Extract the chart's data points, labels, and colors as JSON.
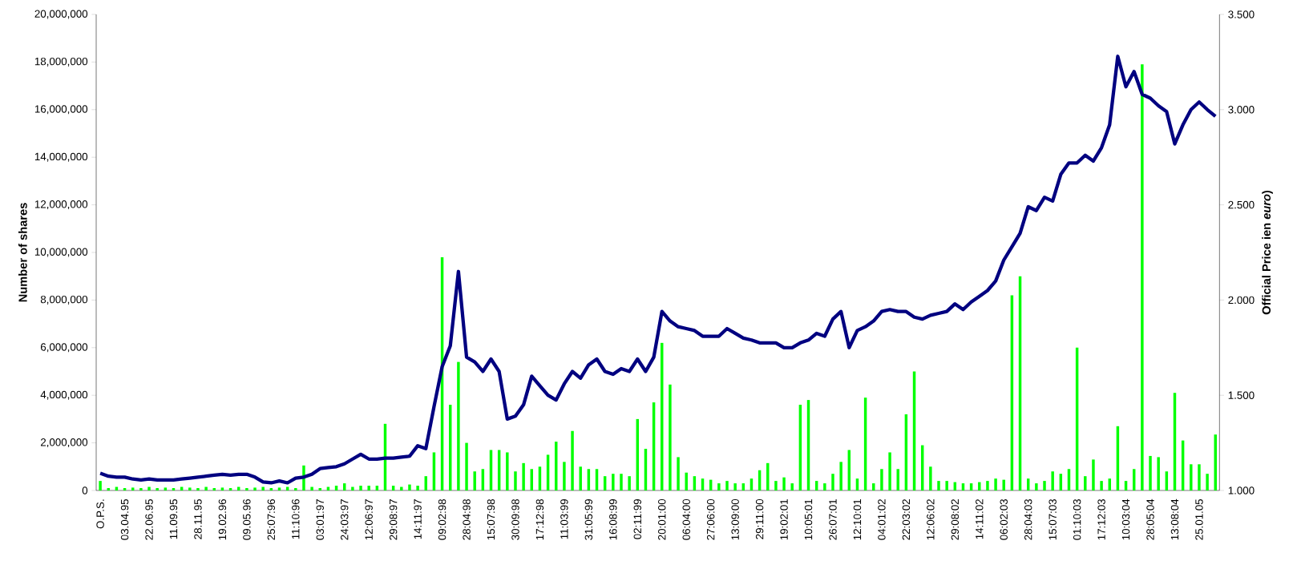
{
  "chart_data": {
    "type": "bar",
    "categories": [
      "O.P.S.",
      null,
      null,
      "03.04.95",
      null,
      null,
      "22.06.95",
      null,
      null,
      "11.09.95",
      null,
      null,
      "28.11.95",
      null,
      null,
      "19.02.96",
      null,
      null,
      "09.05.96",
      null,
      null,
      "25:07:96",
      null,
      null,
      "11:10:96",
      null,
      null,
      "03:01:97",
      null,
      null,
      "24:03:97",
      null,
      null,
      "12:06:97",
      null,
      null,
      "29:08:97",
      null,
      null,
      "14:11:97",
      null,
      null,
      "09:02:98",
      null,
      null,
      "28:04:98",
      null,
      null,
      "15:07:98",
      null,
      null,
      "30:09:98",
      null,
      null,
      "17:12:98",
      null,
      null,
      "11:03:99",
      null,
      null,
      "31:05:99",
      null,
      null,
      "16:08:99",
      null,
      null,
      "02:11:99",
      null,
      null,
      "20:01:00",
      null,
      null,
      "06:04:00",
      null,
      null,
      "27:06:00",
      null,
      null,
      "13:09:00",
      null,
      null,
      "29:11:00",
      null,
      null,
      "19:02:01",
      null,
      null,
      "10:05:01",
      null,
      null,
      "26:07:01",
      null,
      null,
      "12:10:01",
      null,
      null,
      "04:01:02",
      null,
      null,
      "22:03:02",
      null,
      null,
      "12:06:02",
      null,
      null,
      "29:08:02",
      null,
      null,
      "14:11:02",
      null,
      null,
      "06:02:03",
      null,
      null,
      "28:04:03",
      null,
      null,
      "15:07:03",
      null,
      null,
      "01:10:03",
      null,
      null,
      "17:12:03",
      null,
      null,
      "10:03:04",
      null,
      null,
      "28:05:04",
      null,
      null,
      "13:08:04",
      null,
      null,
      "25.01.05",
      null,
      null
    ],
    "ylabel": "Number of shares",
    "y2label": "Official Price ien *euro*)",
    "ylim": [
      0,
      20000000
    ],
    "yticks": [
      0,
      {
        "value": 2000000,
        "label": "2,000,000"
      },
      {
        "value": 4000000,
        "label": "4,000,000"
      },
      {
        "value": 6000000,
        "label": "6,000,000"
      },
      {
        "value": 8000000,
        "label": "8,000,000"
      },
      {
        "value": 10000000,
        "label": "10,000,000"
      },
      {
        "value": 12000000,
        "label": "12,000,000"
      },
      {
        "value": 14000000,
        "label": "14,000,000"
      },
      {
        "value": 16000000,
        "label": "16,000,000"
      },
      {
        "value": 18000000,
        "label": "18,000,000"
      },
      {
        "value": 20000000,
        "label": "20,000,000"
      }
    ],
    "y2lim": [
      1,
      3.5
    ],
    "y2ticks": [
      {
        "value": 1,
        "label": "1.000"
      },
      {
        "value": 1.5,
        "label": "1.500"
      },
      {
        "value": 2,
        "label": "2.000"
      },
      {
        "value": 2.5,
        "label": "2.500"
      },
      {
        "value": 3,
        "label": "3.000"
      },
      {
        "value": 3.5,
        "label": "3.500"
      }
    ],
    "series": [
      {
        "color": "#00ff00",
        "values": [
          400000,
          100000,
          150000,
          100000,
          120000,
          100000,
          150000,
          100000,
          120000,
          100000,
          150000,
          120000,
          100000,
          150000,
          100000,
          120000,
          100000,
          150000,
          100000,
          120000,
          150000,
          100000,
          120000,
          150000,
          100000,
          1050000,
          150000,
          100000,
          150000,
          200000,
          300000,
          150000,
          200000,
          200000,
          200000,
          2800000,
          200000,
          150000,
          250000,
          200000,
          600000,
          1600000,
          9800000,
          3600000,
          5400000,
          2000000,
          800000,
          900000,
          1700000,
          1700000,
          1600000,
          800000,
          1150000,
          900000,
          1000000,
          1500000,
          2050000,
          1200000,
          2500000,
          1000000,
          900000,
          900000,
          600000,
          700000,
          700000,
          600000,
          3000000,
          1750000,
          3700000,
          6200000,
          4450000,
          1400000,
          750000,
          600000,
          500000,
          450000,
          300000,
          400000,
          300000,
          300000,
          500000,
          850000,
          1150000,
          400000,
          550000,
          300000,
          3600000,
          3800000,
          400000,
          300000,
          700000,
          1200000,
          1700000,
          500000,
          3900000,
          300000,
          900000,
          1600000,
          900000,
          3200000,
          5000000,
          1900000,
          1000000,
          400000,
          400000,
          350000,
          300000,
          300000,
          350000,
          400000,
          500000,
          450000,
          8200000,
          9000000,
          500000,
          300000,
          400000,
          800000,
          700000,
          900000,
          6000000,
          600000,
          1300000,
          400000,
          500000,
          2700000,
          400000,
          900000,
          17900000,
          1450000,
          1400000,
          800000,
          4100000,
          2100000,
          1100000,
          1100000,
          700000,
          2350000
        ]
      },
      {
        "type": "line",
        "color": "#000080",
        "axis": "y2",
        "values": [
          1.09,
          1.075,
          1.07,
          1.07,
          1.06,
          1.055,
          1.06,
          1.055,
          1.055,
          1.055,
          1.06,
          1.065,
          1.07,
          1.075,
          1.08,
          1.085,
          1.08,
          1.085,
          1.085,
          1.07,
          1.045,
          1.04,
          1.05,
          1.04,
          1.065,
          1.07,
          1.085,
          1.115,
          1.12,
          1.125,
          1.14,
          1.165,
          1.19,
          1.165,
          1.165,
          1.17,
          1.17,
          1.175,
          1.18,
          1.235,
          1.22,
          1.44,
          1.65,
          1.76,
          2.15,
          1.7,
          1.675,
          1.625,
          1.69,
          1.625,
          1.375,
          1.39,
          1.45,
          1.6,
          1.55,
          1.5,
          1.475,
          1.56,
          1.625,
          1.59,
          1.66,
          1.69,
          1.625,
          1.61,
          1.64,
          1.625,
          1.69,
          1.625,
          1.7,
          1.94,
          1.89,
          1.86,
          1.85,
          1.84,
          1.81,
          1.81,
          1.81,
          1.85,
          1.825,
          1.8,
          1.79,
          1.775,
          1.775,
          1.775,
          1.75,
          1.75,
          1.775,
          1.79,
          1.825,
          1.81,
          1.9,
          1.94,
          1.75,
          1.84,
          1.86,
          1.89,
          1.94,
          1.95,
          1.94,
          1.94,
          1.91,
          1.9,
          1.92,
          1.93,
          1.94,
          1.98,
          1.95,
          1.99,
          2.02,
          2.05,
          2.1,
          2.21,
          2.28,
          2.35,
          2.49,
          2.47,
          2.54,
          2.52,
          2.66,
          2.72,
          2.72,
          2.76,
          2.73,
          2.8,
          2.92,
          3.28,
          3.12,
          3.2,
          3.08,
          3.06,
          3.02,
          2.99,
          2.82,
          2.92,
          3.0,
          3.04,
          3.0,
          2.965
        ]
      }
    ]
  }
}
